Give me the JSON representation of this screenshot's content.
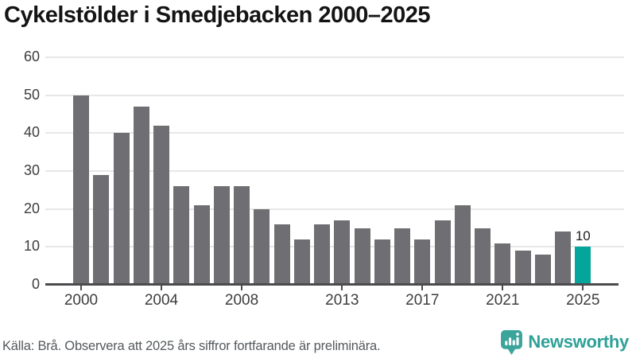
{
  "header": {
    "title": "Cykelstölder i Smedjebacken 2000–2025"
  },
  "chart_data": {
    "type": "bar",
    "title": "Cykelstölder i Smedjebacken 2000–2025",
    "x": [
      2000,
      2001,
      2002,
      2003,
      2004,
      2005,
      2006,
      2007,
      2008,
      2009,
      2010,
      2011,
      2012,
      2013,
      2014,
      2015,
      2016,
      2017,
      2018,
      2019,
      2020,
      2021,
      2022,
      2023,
      2024,
      2025
    ],
    "values": [
      50,
      29,
      40,
      47,
      42,
      26,
      21,
      26,
      26,
      20,
      16,
      12,
      16,
      17,
      15,
      12,
      15,
      12,
      17,
      21,
      15,
      11,
      9,
      8,
      14,
      10
    ],
    "xlabel": "",
    "ylabel": "",
    "ylim": [
      0,
      60
    ],
    "yticks": [
      0,
      10,
      20,
      30,
      40,
      50,
      60
    ],
    "xticks": [
      2000,
      2004,
      2008,
      2013,
      2017,
      2021,
      2025
    ],
    "grid": true,
    "legend": "none",
    "bar_color": "#6f6f73",
    "highlight_index": 25,
    "highlight_color": "#04a69b",
    "highlight_label": "10"
  },
  "footer": {
    "source_note": "Källa: Brå. Observera att 2025 års siffror fortfarande är preliminära.",
    "brand": {
      "name": "Newsworthy",
      "color": "#2fa198",
      "icon": "newsworthy-logo-icon"
    }
  }
}
